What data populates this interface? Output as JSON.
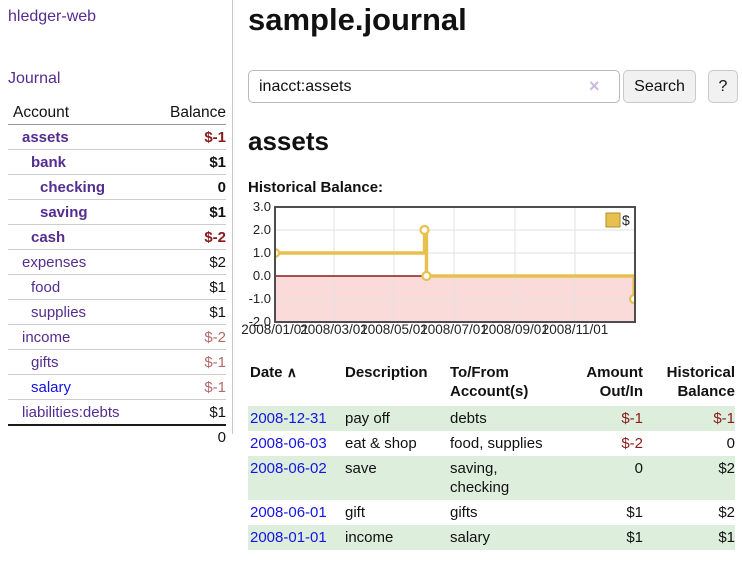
{
  "app": {
    "title": "hledger-web",
    "nav_journal": "Journal"
  },
  "sidebar": {
    "header": {
      "account": "Account",
      "balance": "Balance"
    },
    "accounts": [
      {
        "name": "assets",
        "balance": "$-1",
        "indent": 1,
        "bold": true,
        "bal_class": "neg-strong",
        "link": "visited"
      },
      {
        "name": "bank",
        "balance": "$1",
        "indent": 2,
        "bold": true,
        "bal_class": "",
        "link": "visited"
      },
      {
        "name": "checking",
        "balance": "0",
        "indent": 3,
        "bold": true,
        "bal_class": "",
        "link": "visited"
      },
      {
        "name": "saving",
        "balance": "$1",
        "indent": 3,
        "bold": true,
        "bal_class": "",
        "link": "visited"
      },
      {
        "name": "cash",
        "balance": "$-2",
        "indent": 2,
        "bold": true,
        "bal_class": "neg-strong",
        "link": "visited"
      },
      {
        "name": "expenses",
        "balance": "$2",
        "indent": 1,
        "bold": false,
        "bal_class": "",
        "link": "visited"
      },
      {
        "name": "food",
        "balance": "$1",
        "indent": 2,
        "bold": false,
        "bal_class": "",
        "link": "visited"
      },
      {
        "name": "supplies",
        "balance": "$1",
        "indent": 2,
        "bold": false,
        "bal_class": "",
        "link": "visited"
      },
      {
        "name": "income",
        "balance": "$-2",
        "indent": 1,
        "bold": false,
        "bal_class": "neg-soft",
        "link": "visited"
      },
      {
        "name": "gifts",
        "balance": "$-1",
        "indent": 2,
        "bold": false,
        "bal_class": "neg-soft",
        "link": "visited"
      },
      {
        "name": "salary",
        "balance": "$-1",
        "indent": 2,
        "bold": false,
        "bal_class": "neg-soft",
        "link": "unvisited"
      },
      {
        "name": "liabilities:debts",
        "balance": "$1",
        "indent": 1,
        "bold": false,
        "bal_class": "",
        "link": "visited"
      }
    ],
    "total": "0"
  },
  "main": {
    "title": "sample.journal",
    "search": {
      "value": "inacct:assets",
      "clear_icon": "×",
      "button_label": "Search",
      "help_label": "?"
    },
    "account_heading": "assets",
    "chart_label": "Historical Balance:"
  },
  "chart_data": {
    "type": "line",
    "step": true,
    "title": "Historical Balance:",
    "legend": {
      "label": "$",
      "position": "top-right"
    },
    "x_total_days": 366,
    "x_ticks": [
      {
        "label": "2008/01/01",
        "day": 0
      },
      {
        "label": "2008/03/01",
        "day": 60
      },
      {
        "label": "2008/05/01",
        "day": 121
      },
      {
        "label": "2008/07/01",
        "day": 182
      },
      {
        "label": "2008/09/01",
        "day": 244
      },
      {
        "label": "2008/11/01",
        "day": 305
      }
    ],
    "y_ticks": [
      {
        "label": "3.0",
        "value": 3
      },
      {
        "label": "2.0",
        "value": 2
      },
      {
        "label": "1.0",
        "value": 1
      },
      {
        "label": "0.0",
        "value": 0
      },
      {
        "label": "-1.0",
        "value": -1
      },
      {
        "label": "-2.0",
        "value": -2
      }
    ],
    "ylim": [
      -2,
      3
    ],
    "grid": true,
    "series": [
      {
        "name": "$",
        "points": [
          {
            "date": "2008-01-01",
            "day": 0,
            "value": 1
          },
          {
            "date": "2008-06-01",
            "day": 152,
            "value": 2
          },
          {
            "date": "2008-06-03",
            "day": 154,
            "value": 0
          },
          {
            "date": "2008-12-31",
            "day": 365,
            "value": -1
          }
        ]
      }
    ]
  },
  "register": {
    "headers": {
      "date": "Date",
      "date_sort_icon": "∧",
      "description": "Description",
      "tofrom": "To/From Account(s)",
      "amount": "Amount Out/In",
      "balance": "Historical Balance"
    },
    "rows": [
      {
        "date": "2008-12-31",
        "description": "pay off",
        "accounts": "debts",
        "amount": "$-1",
        "amount_neg": true,
        "balance": "$-1",
        "balance_neg": true,
        "shaded": true
      },
      {
        "date": "2008-06-03",
        "description": "eat & shop",
        "accounts": "food, supplies",
        "amount": "$-2",
        "amount_neg": true,
        "balance": "0",
        "balance_neg": false,
        "shaded": false
      },
      {
        "date": "2008-06-02",
        "description": "save",
        "accounts": "saving, checking",
        "amount": "0",
        "amount_neg": false,
        "balance": "$2",
        "balance_neg": false,
        "shaded": true
      },
      {
        "date": "2008-06-01",
        "description": "gift",
        "accounts": "gifts",
        "amount": "$1",
        "amount_neg": false,
        "balance": "$2",
        "balance_neg": false,
        "shaded": false
      },
      {
        "date": "2008-01-01",
        "description": "income",
        "accounts": "salary",
        "amount": "$1",
        "amount_neg": false,
        "balance": "$1",
        "balance_neg": false,
        "shaded": true
      }
    ]
  },
  "colors": {
    "link_visited": "#552d90",
    "link_unvisited": "#1414e0",
    "negative_strong": "#8b1a1a",
    "negative_soft": "#b46a6a",
    "row_shade": "#ddeedd",
    "chart_line": "#e8c050",
    "chart_negative_fill": "#fbdada",
    "zero_line": "#8b1a1a",
    "chart_border": "#4d4d4d",
    "gridline": "#e2e2e2"
  }
}
